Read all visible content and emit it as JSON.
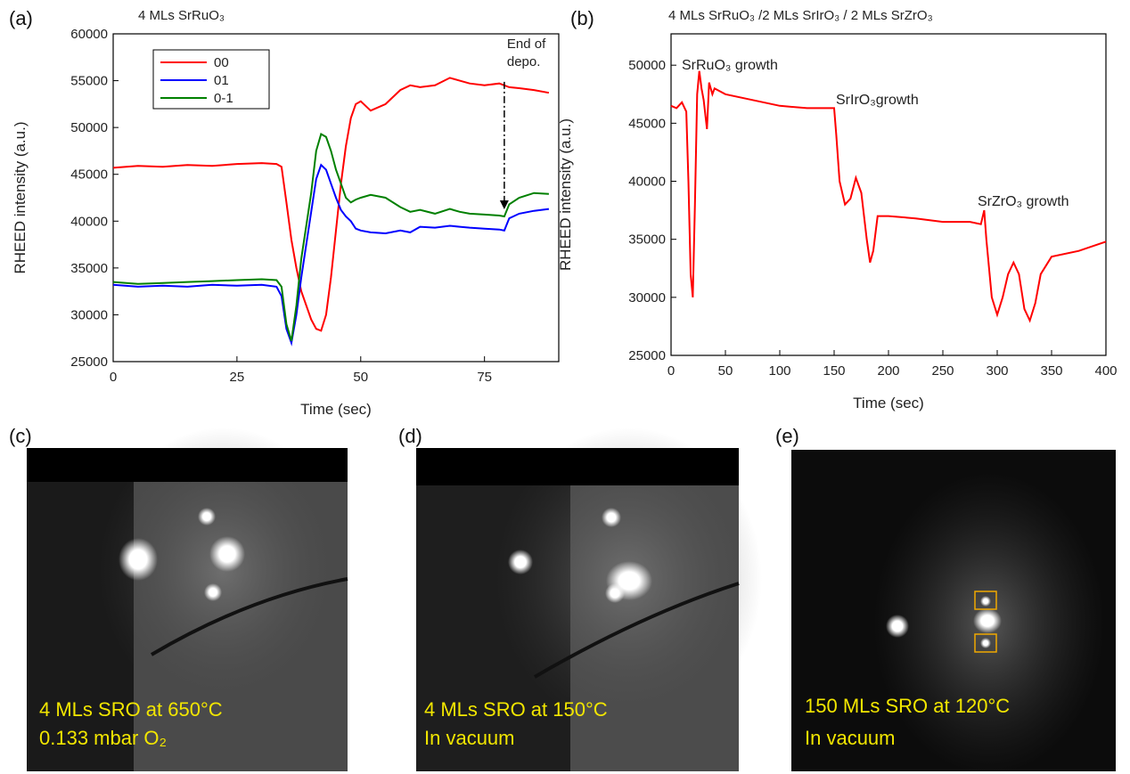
{
  "chart_data": [
    {
      "type": "line",
      "panel_label": "(a)",
      "title": "4 MLs SrRuO₃",
      "xlabel": "Time (sec)",
      "ylabel": "RHEED intensity (a.u.)",
      "xlim": [
        0,
        90
      ],
      "xticks": [
        0,
        25,
        50,
        75
      ],
      "ylim": [
        25000,
        60000
      ],
      "yticks": [
        25000,
        30000,
        35000,
        40000,
        45000,
        50000,
        55000,
        60000
      ],
      "legend": "upper left",
      "annotation": [
        "End of",
        "depo."
      ],
      "x": [
        0,
        5,
        10,
        15,
        20,
        25,
        30,
        33,
        34,
        35,
        36,
        37,
        38,
        40,
        41,
        42,
        43,
        44,
        45,
        46,
        47,
        48,
        49,
        50,
        52,
        55,
        58,
        60,
        62,
        65,
        68,
        70,
        72,
        75,
        78,
        79,
        80,
        82,
        85,
        88
      ],
      "series": [
        {
          "name": "00",
          "color": "#ff0000",
          "values": [
            45700,
            45900,
            45800,
            46000,
            45900,
            46100,
            46200,
            46100,
            45800,
            42000,
            38000,
            35000,
            32500,
            29500,
            28500,
            28300,
            30000,
            34000,
            39000,
            44000,
            48000,
            51000,
            52500,
            52800,
            51800,
            52500,
            54000,
            54500,
            54300,
            54500,
            55300,
            55000,
            54700,
            54500,
            54700,
            54500,
            54300,
            54200,
            54000,
            53700
          ]
        },
        {
          "name": "01",
          "color": "#0000ff",
          "values": [
            33200,
            33000,
            33100,
            33000,
            33200,
            33100,
            33200,
            33000,
            32000,
            28500,
            27000,
            30000,
            34000,
            41000,
            44500,
            46000,
            45500,
            44000,
            42500,
            41200,
            40500,
            40000,
            39200,
            39000,
            38800,
            38700,
            39000,
            38800,
            39400,
            39300,
            39500,
            39400,
            39300,
            39200,
            39100,
            39000,
            40300,
            40800,
            41100,
            41300
          ]
        },
        {
          "name": "0-1",
          "color": "#008000",
          "values": [
            33500,
            33300,
            33400,
            33500,
            33600,
            33700,
            33800,
            33700,
            33000,
            29000,
            27200,
            31000,
            36000,
            43000,
            47500,
            49300,
            49000,
            47500,
            45500,
            44000,
            42500,
            42000,
            42300,
            42500,
            42800,
            42500,
            41500,
            41000,
            41200,
            40800,
            41300,
            41000,
            40800,
            40700,
            40600,
            40500,
            41800,
            42500,
            43000,
            42900
          ]
        }
      ]
    },
    {
      "type": "line",
      "panel_label": "(b)",
      "title": "4 MLs SrRuO₃ /2 MLs SrIrO₃ / 2 MLs SrZrO₃",
      "xlabel": "Time (sec)",
      "ylabel": "RHEED intensity (a.u.)",
      "xlim": [
        0,
        400
      ],
      "xticks": [
        0,
        50,
        100,
        150,
        200,
        250,
        300,
        350,
        400
      ],
      "ylim": [
        25000,
        52700
      ],
      "yticks": [
        25000,
        30000,
        35000,
        40000,
        45000,
        50000
      ],
      "annotations": [
        "SrRuO₃ growth",
        "SrIrO₃growth",
        "SrZrO₃ growth"
      ],
      "x": [
        0,
        5,
        10,
        14,
        16,
        18,
        20,
        22,
        24,
        26,
        28,
        30,
        33,
        35,
        38,
        40,
        50,
        75,
        100,
        125,
        150,
        152,
        155,
        160,
        165,
        170,
        175,
        180,
        183,
        186,
        190,
        200,
        225,
        250,
        275,
        285,
        288,
        290,
        295,
        300,
        305,
        310,
        315,
        320,
        325,
        330,
        335,
        340,
        350,
        375,
        400
      ],
      "series": [
        {
          "color": "#ff0000",
          "values": [
            46500,
            46300,
            46800,
            46000,
            40000,
            32000,
            30000,
            38000,
            47500,
            49500,
            48000,
            47000,
            44500,
            48500,
            47500,
            48000,
            47500,
            47000,
            46500,
            46300,
            46300,
            44000,
            40000,
            38000,
            38500,
            40300,
            39000,
            35000,
            33000,
            34000,
            37000,
            37000,
            36800,
            36500,
            36500,
            36300,
            37500,
            35000,
            30000,
            28500,
            30000,
            32000,
            33000,
            32000,
            29000,
            28000,
            29500,
            32000,
            33500,
            34000,
            34800
          ]
        }
      ]
    }
  ],
  "images": [
    {
      "label": "(c)",
      "caption": [
        "4 MLs SRO at 650°C",
        "0.133 mbar O₂"
      ]
    },
    {
      "label": "(d)",
      "caption": [
        "4 MLs SRO at 150°C",
        "In vacuum"
      ]
    },
    {
      "label": "(e)",
      "caption": [
        "150 MLs SRO at 120°C",
        "In vacuum"
      ]
    }
  ]
}
